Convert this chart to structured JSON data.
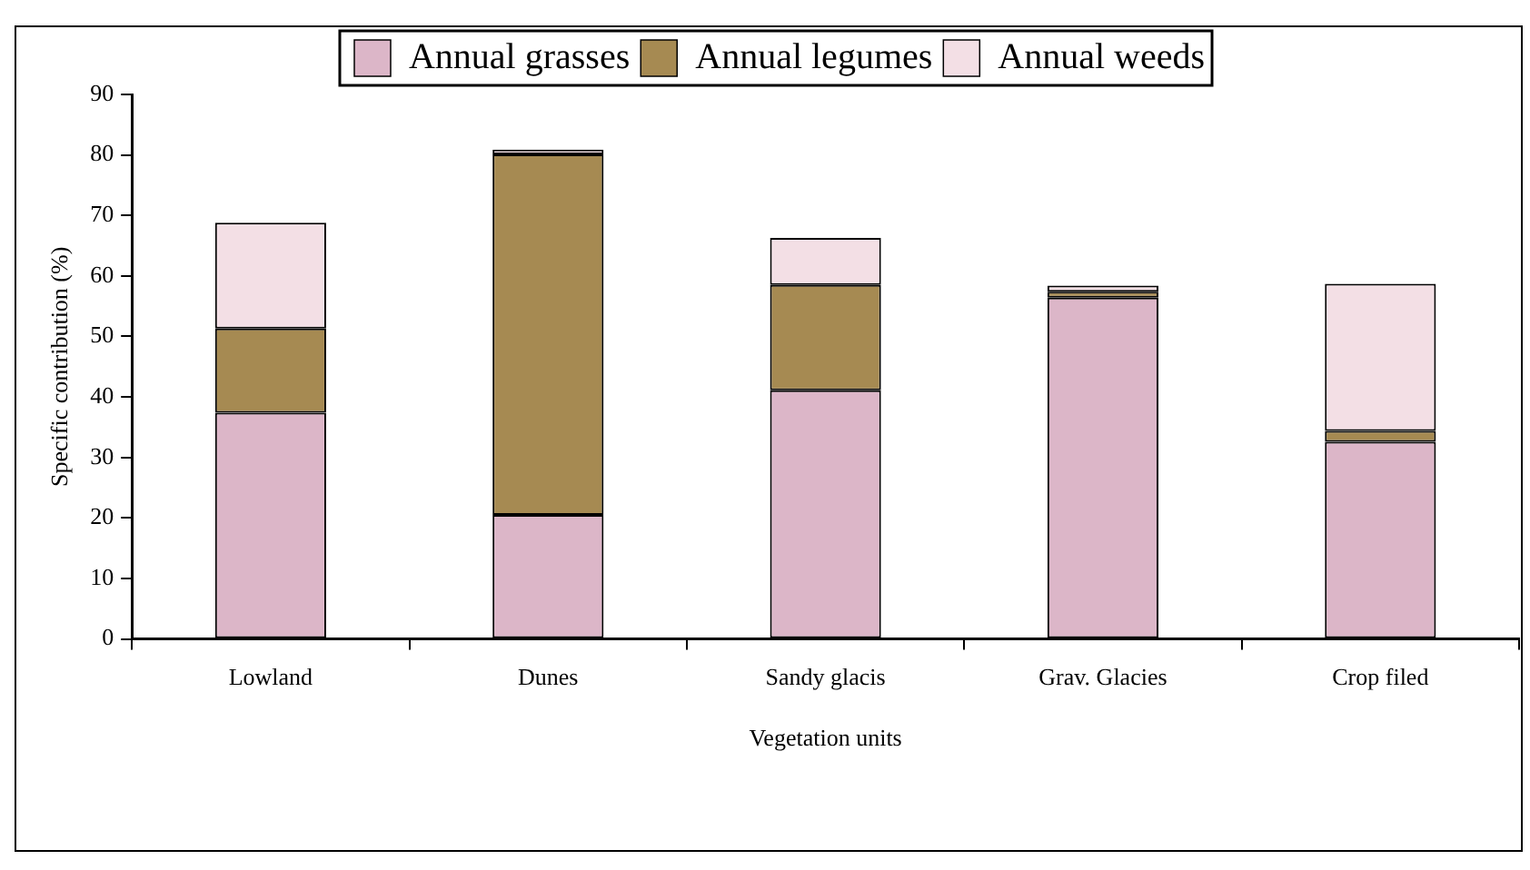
{
  "chart_data": {
    "type": "bar",
    "stacked": true,
    "xlabel": "Vegetation units",
    "ylabel": "Specific contribution (%)",
    "categories": [
      "Lowland",
      "Dunes",
      "Sandy glacis",
      "Grav. Glacies",
      "Crop filed"
    ],
    "series": [
      {
        "name": "Annual grasses",
        "color": "#dcb6c8",
        "values": [
          37.4,
          20.5,
          41.1,
          56.4,
          32.6
        ]
      },
      {
        "name": "Annual legumes",
        "color": "#a68a52",
        "values": [
          13.9,
          59.6,
          17.4,
          1.0,
          1.8
        ]
      },
      {
        "name": "Annual weeds",
        "color": "#f3dfe5",
        "values": [
          17.5,
          0.8,
          7.8,
          1.0,
          24.3
        ]
      }
    ],
    "ylim": [
      0,
      90
    ],
    "yticks": [
      0,
      10,
      20,
      30,
      40,
      50,
      60,
      70,
      80,
      90
    ],
    "grid": false,
    "legend": "top"
  }
}
